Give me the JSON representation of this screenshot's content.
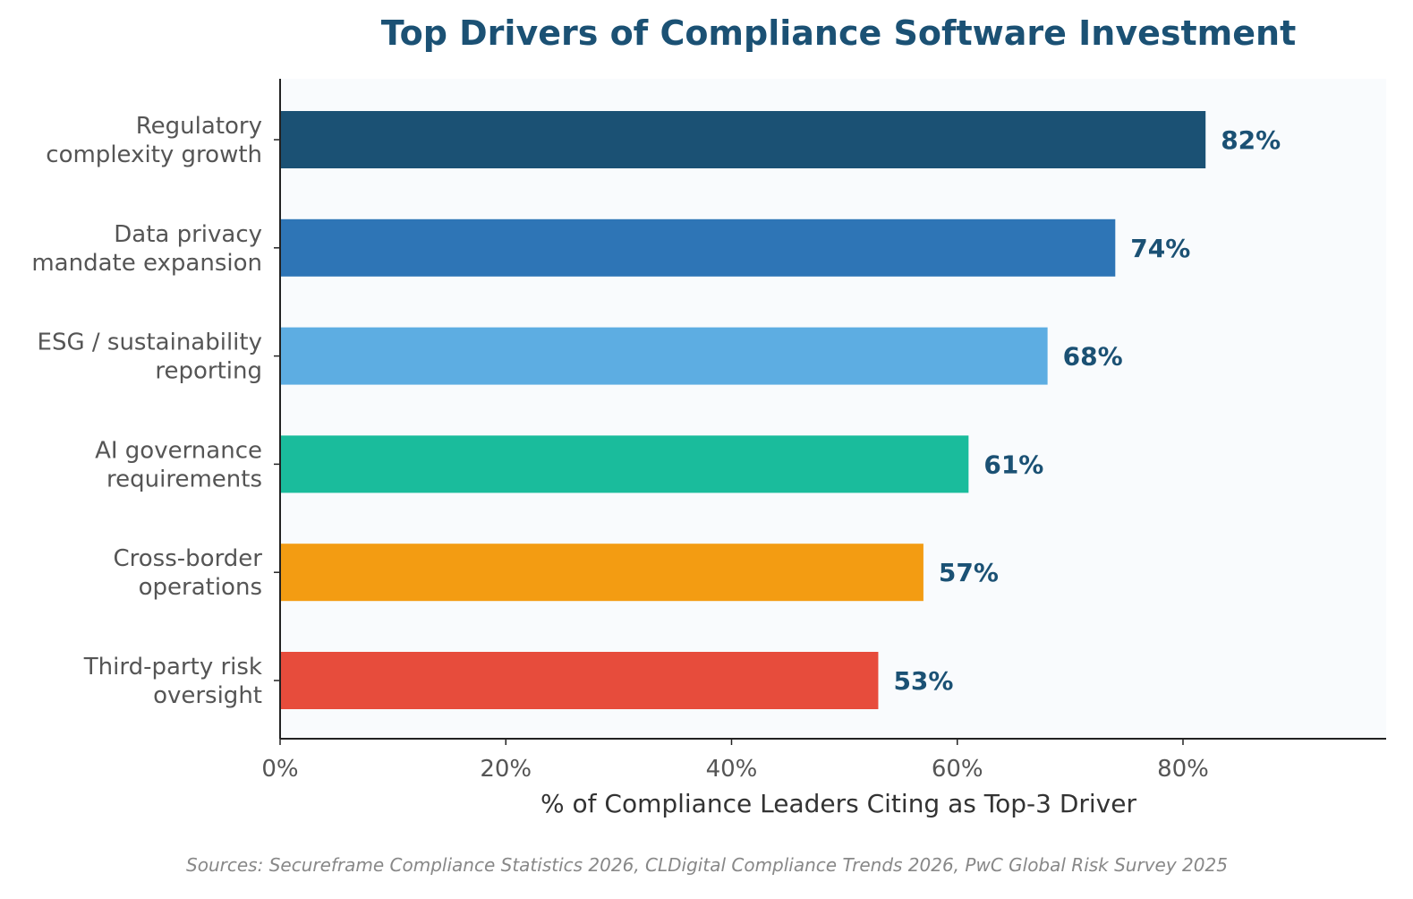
{
  "chart_data": {
    "type": "bar",
    "orientation": "horizontal",
    "title": "Top Drivers of Compliance Software Investment",
    "xlabel": "% of Compliance Leaders Citing as Top-3 Driver",
    "ylabel": "",
    "categories": [
      [
        "Regulatory",
        "complexity growth"
      ],
      [
        "Data privacy",
        "mandate expansion"
      ],
      [
        "ESG / sustainability",
        "reporting"
      ],
      [
        "AI governance",
        "requirements"
      ],
      [
        "Cross-border",
        "operations"
      ],
      [
        "Third-party risk",
        "oversight"
      ]
    ],
    "values": [
      82,
      74,
      68,
      61,
      57,
      53
    ],
    "value_labels": [
      "82%",
      "74%",
      "68%",
      "61%",
      "57%",
      "53%"
    ],
    "colors": [
      "#1b5174",
      "#2e75b6",
      "#5dade2",
      "#1abc9c",
      "#f39c12",
      "#e74c3c"
    ],
    "xlim": [
      0,
      98
    ],
    "xticks": [
      0,
      20,
      40,
      60,
      80
    ],
    "xtick_labels": [
      "0%",
      "20%",
      "40%",
      "60%",
      "80%"
    ],
    "grid": false,
    "plot_background": "#f9fbfd",
    "source": "Sources: Secureframe Compliance Statistics 2026, CLDigital Compliance Trends 2026, PwC Global Risk Survey 2025"
  }
}
